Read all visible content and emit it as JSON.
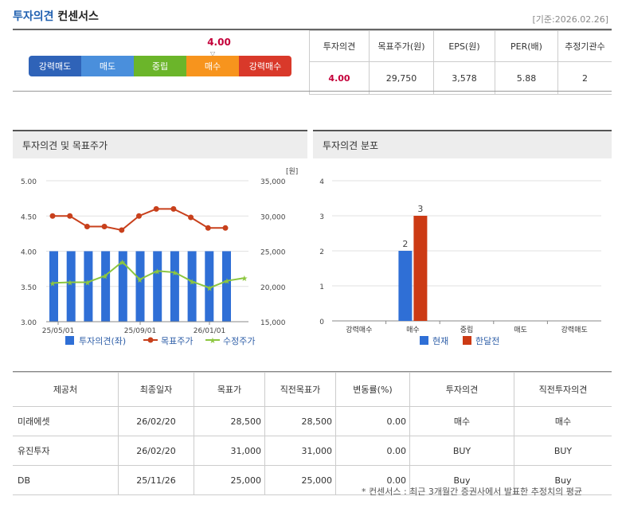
{
  "header": {
    "title_accent": "투자의견",
    "title_rest": "컨센서스",
    "base_date": "[기준:2026.02.26]"
  },
  "scale": {
    "current_value": "4.00",
    "labels": [
      "강력매도",
      "매도",
      "중립",
      "매수",
      "강력매수"
    ],
    "colors": [
      "#2f63b8",
      "#4a8fdc",
      "#6bb52a",
      "#f7941d",
      "#d9392a"
    ],
    "active_index": 3
  },
  "summary": {
    "headers": [
      "투자의견",
      "목표주가(원)",
      "EPS(원)",
      "PER(배)",
      "추정기관수"
    ],
    "values": [
      "4.00",
      "29,750",
      "3,578",
      "5.88",
      "2"
    ]
  },
  "panels": {
    "left_title": "투자의견 및 목표주가",
    "right_title": "투자의견 분포"
  },
  "chart_data": [
    {
      "type": "bar",
      "title": "투자의견 및 목표주가",
      "y_left_ticks": [
        "5.00",
        "4.50",
        "4.00",
        "3.50",
        "3.00"
      ],
      "y_right_unit": "[원]",
      "y_right_ticks": [
        "35,000",
        "30,000",
        "25,000",
        "20,000",
        "15,000"
      ],
      "ylim_left": [
        3.0,
        5.0
      ],
      "ylim_right": [
        15000,
        35000
      ],
      "x_tick_labels": [
        "25/05/01",
        "25/09/01",
        "26/01/01"
      ],
      "series": [
        {
          "name": "투자의견(좌)",
          "kind": "bar",
          "color": "#2f6fd6",
          "axis": "left",
          "values": [
            4,
            4,
            4,
            4,
            4,
            4,
            4,
            4,
            4,
            4,
            4
          ]
        },
        {
          "name": "목표주가",
          "kind": "line",
          "color": "#c8401c",
          "axis": "right",
          "values": [
            30000,
            30000,
            28500,
            28500,
            28000,
            30000,
            31000,
            31000,
            29800,
            28300,
            28300
          ]
        },
        {
          "name": "수정주가",
          "kind": "line",
          "color": "#8cc63f",
          "axis": "right",
          "values": [
            20500,
            20600,
            20600,
            21500,
            23500,
            21000,
            22200,
            22000,
            20700,
            19800,
            20800,
            21200
          ]
        }
      ]
    },
    {
      "type": "bar",
      "title": "투자의견 분포",
      "categories": [
        "강력매수",
        "매수",
        "중립",
        "매도",
        "강력매도"
      ],
      "y_ticks": [
        "4",
        "3",
        "2",
        "1",
        "0"
      ],
      "ylim": [
        0,
        4
      ],
      "series": [
        {
          "name": "현재",
          "color": "#2f6fd6",
          "values": [
            0,
            2,
            0,
            0,
            0
          ]
        },
        {
          "name": "한달전",
          "color": "#cc3a14",
          "values": [
            0,
            3,
            0,
            0,
            0
          ]
        }
      ]
    }
  ],
  "table": {
    "headers": [
      "제공처",
      "최종일자",
      "목표가",
      "직전목표가",
      "변동률(%)",
      "투자의견",
      "직전투자의견"
    ],
    "rows": [
      [
        "미래에셋",
        "26/02/20",
        "28,500",
        "28,500",
        "0.00",
        "매수",
        "매수"
      ],
      [
        "유진투자",
        "26/02/20",
        "31,000",
        "31,000",
        "0.00",
        "BUY",
        "BUY"
      ],
      [
        "DB",
        "25/11/26",
        "25,000",
        "25,000",
        "0.00",
        "Buy",
        "Buy"
      ]
    ]
  },
  "footnote": "* 컨센서스 : 최근 3개월간 증권사에서 발표한 추정치의 평균"
}
